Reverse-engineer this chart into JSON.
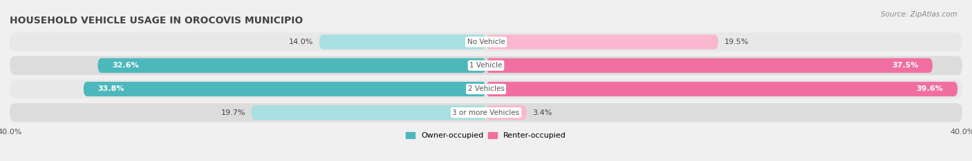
{
  "title": "HOUSEHOLD VEHICLE USAGE IN OROCOVIS MUNICIPIO",
  "source": "Source: ZipAtlas.com",
  "categories": [
    "No Vehicle",
    "1 Vehicle",
    "2 Vehicles",
    "3 or more Vehicles"
  ],
  "owner_values": [
    14.0,
    32.6,
    33.8,
    19.7
  ],
  "renter_values": [
    19.5,
    37.5,
    39.6,
    3.4
  ],
  "max_value": 40.0,
  "owner_color": "#4db8bc",
  "renter_color": "#f06fa0",
  "owner_color_light": "#a8dfe0",
  "renter_color_light": "#f9b8cf",
  "owner_label": "Owner-occupied",
  "renter_label": "Renter-occupied",
  "row_bg_color": "#e8e8e8",
  "row_bg_color_alt": "#dcdcdc",
  "title_fontsize": 10,
  "source_fontsize": 7.5,
  "axis_label_fontsize": 8,
  "bar_label_fontsize": 8,
  "cat_label_fontsize": 7.5,
  "figsize": [
    14.06,
    2.34
  ],
  "dpi": 100
}
